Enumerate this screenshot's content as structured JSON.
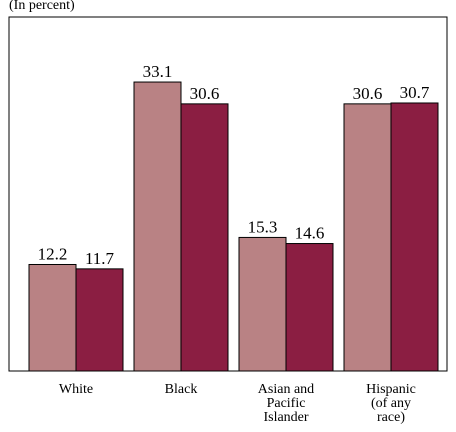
{
  "unit_note": "(In percent)",
  "colors": {
    "series_1": "#b98284",
    "series_2": "#8b1e42",
    "frame": "#000000"
  },
  "chart_data": {
    "type": "bar",
    "title": "",
    "xlabel": "",
    "ylabel": "",
    "ylim": [
      0,
      40
    ],
    "grid": false,
    "legend": "none",
    "categories": [
      [
        "White"
      ],
      [
        "Black"
      ],
      [
        "Asian and",
        "Pacific",
        "Islander"
      ],
      [
        "Hispanic",
        "(of any",
        "race)"
      ]
    ],
    "series": [
      {
        "values": [
          12.2,
          33.1,
          15.3,
          30.6
        ]
      },
      {
        "values": [
          11.7,
          30.6,
          14.6,
          30.7
        ]
      }
    ]
  }
}
